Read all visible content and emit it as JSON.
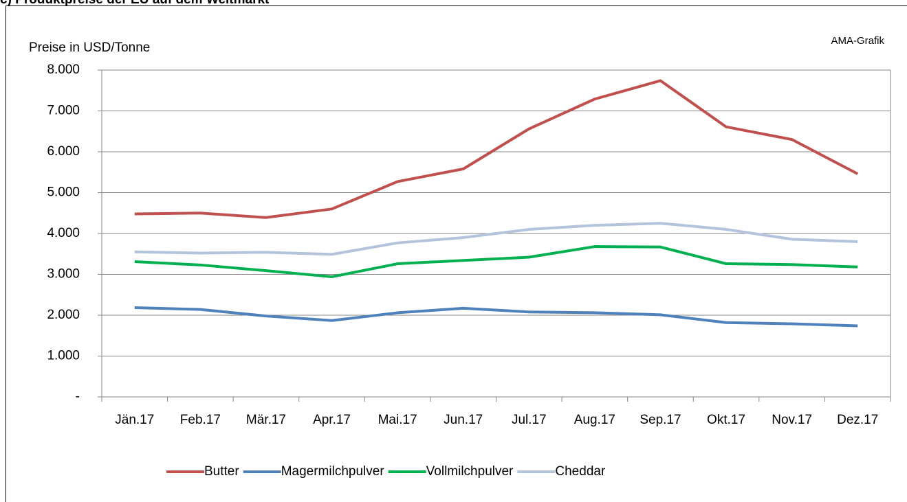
{
  "chart_data": {
    "type": "line",
    "title": "c) Produktpreise der EU auf dem Weltmarkt",
    "ylabel": "Preise in USD/Tonne",
    "annotation": "AMA-Grafik",
    "categories": [
      "Jän.17",
      "Feb.17",
      "Mär.17",
      "Apr.17",
      "Mai.17",
      "Jun.17",
      "Jul.17",
      "Aug.17",
      "Sep.17",
      "Okt.17",
      "Nov.17",
      "Dez.17"
    ],
    "series": [
      {
        "name": "Butter",
        "color": "#c0504d",
        "values": [
          4480,
          4500,
          4390,
          4600,
          5270,
          5580,
          6560,
          7290,
          7740,
          6610,
          6300,
          5460
        ]
      },
      {
        "name": "Magermilchpulver",
        "color": "#4f81bd",
        "values": [
          2185,
          2140,
          1980,
          1870,
          2060,
          2170,
          2080,
          2060,
          2010,
          1820,
          1790,
          1740
        ]
      },
      {
        "name": "Vollmilchpulver",
        "color": "#00b050",
        "values": [
          3310,
          3230,
          3090,
          2940,
          3260,
          3340,
          3420,
          3680,
          3670,
          3260,
          3240,
          3180
        ]
      },
      {
        "name": "Cheddar",
        "color": "#b4c3dc",
        "values": [
          3550,
          3520,
          3540,
          3490,
          3770,
          3900,
          4100,
          4200,
          4250,
          4100,
          3860,
          3800
        ]
      }
    ],
    "ylim": [
      0,
      8000
    ],
    "yticks": [
      {
        "value": 0,
        "label": "-"
      },
      {
        "value": 1000,
        "label": "1.000"
      },
      {
        "value": 2000,
        "label": "2.000"
      },
      {
        "value": 3000,
        "label": "3.000"
      },
      {
        "value": 4000,
        "label": "4.000"
      },
      {
        "value": 5000,
        "label": "5.000"
      },
      {
        "value": 6000,
        "label": "6.000"
      },
      {
        "value": 7000,
        "label": "7.000"
      },
      {
        "value": 8000,
        "label": "8.000"
      }
    ],
    "grid": true,
    "legend": "bottom"
  }
}
